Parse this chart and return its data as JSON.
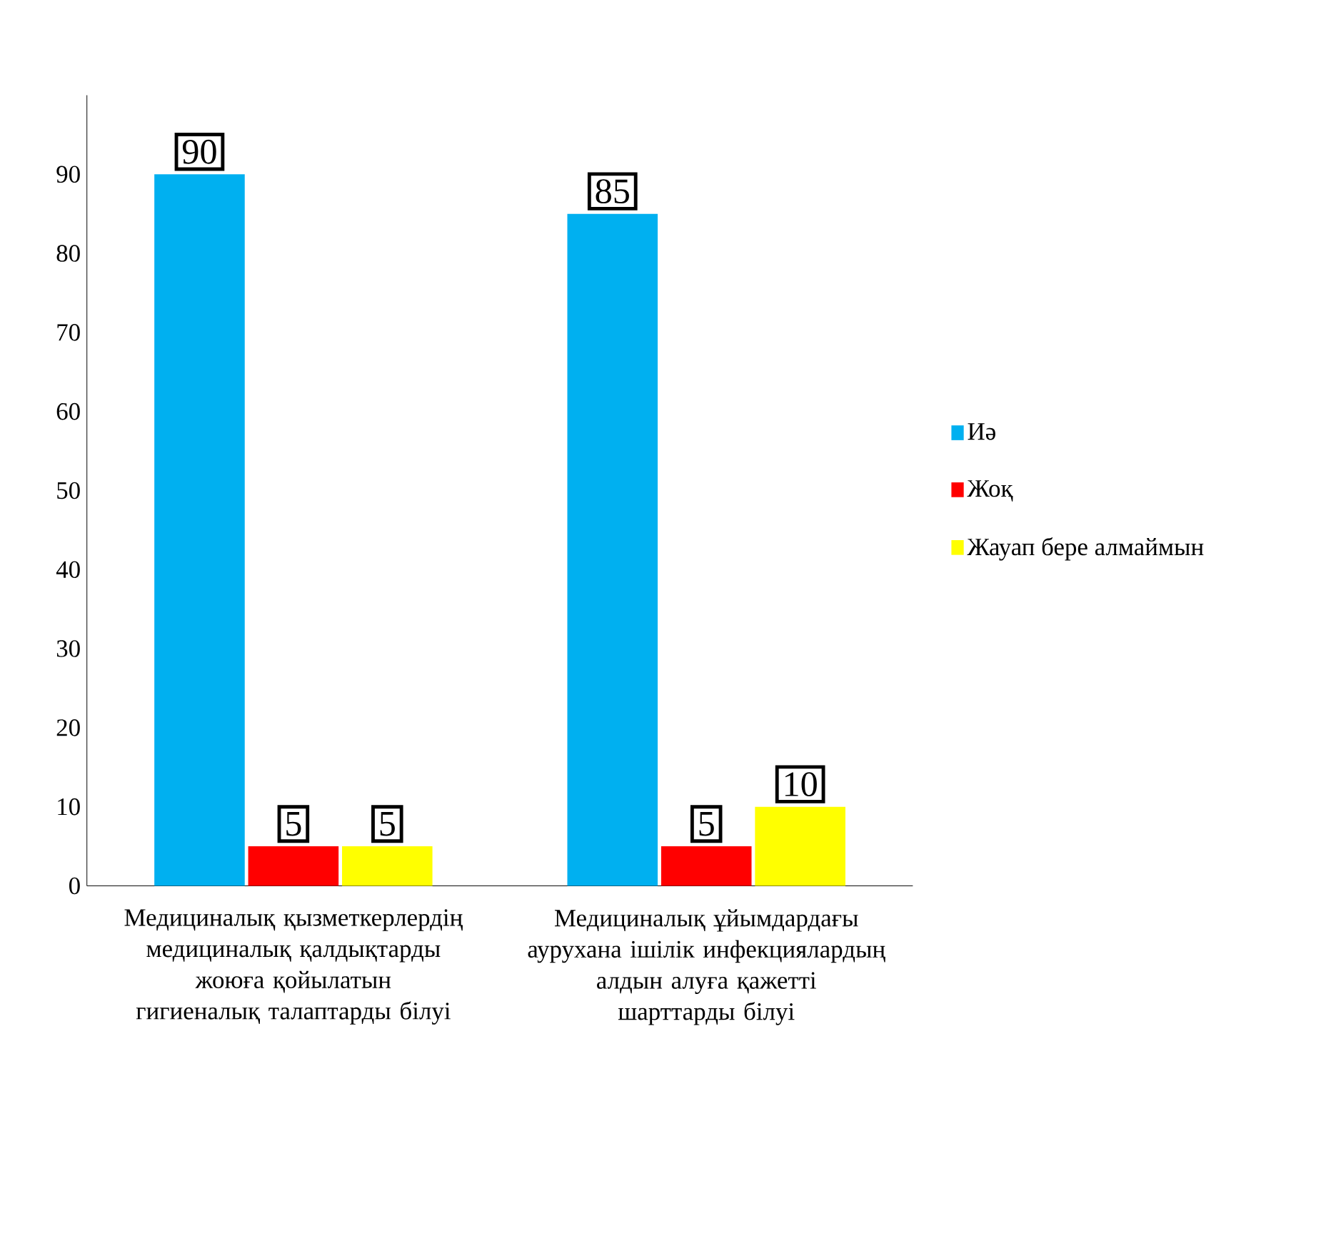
{
  "chart_data": {
    "type": "bar",
    "categories": [
      "Медициналық қызметкерлердің медициналық қалдықтарды жоюға қойылатын гигиеналық талаптарды білуі",
      "Медициналық ұйымдардағы аурухана ішілік инфекциялардың алдын алуға қажетті шарттарды білуі"
    ],
    "series": [
      {
        "name": "Иә",
        "color": "#00b0f0",
        "values": [
          90,
          85
        ]
      },
      {
        "name": "Жоқ",
        "color": "#ff0000",
        "values": [
          5,
          5
        ]
      },
      {
        "name": "Жауап бере алмаймын",
        "color": "#ffff00",
        "values": [
          5,
          10
        ]
      }
    ],
    "ylim": [
      0,
      100
    ],
    "yticks": [
      0,
      10,
      20,
      30,
      40,
      50,
      60,
      70,
      80,
      90
    ],
    "data_labels": true,
    "legend": "right"
  }
}
